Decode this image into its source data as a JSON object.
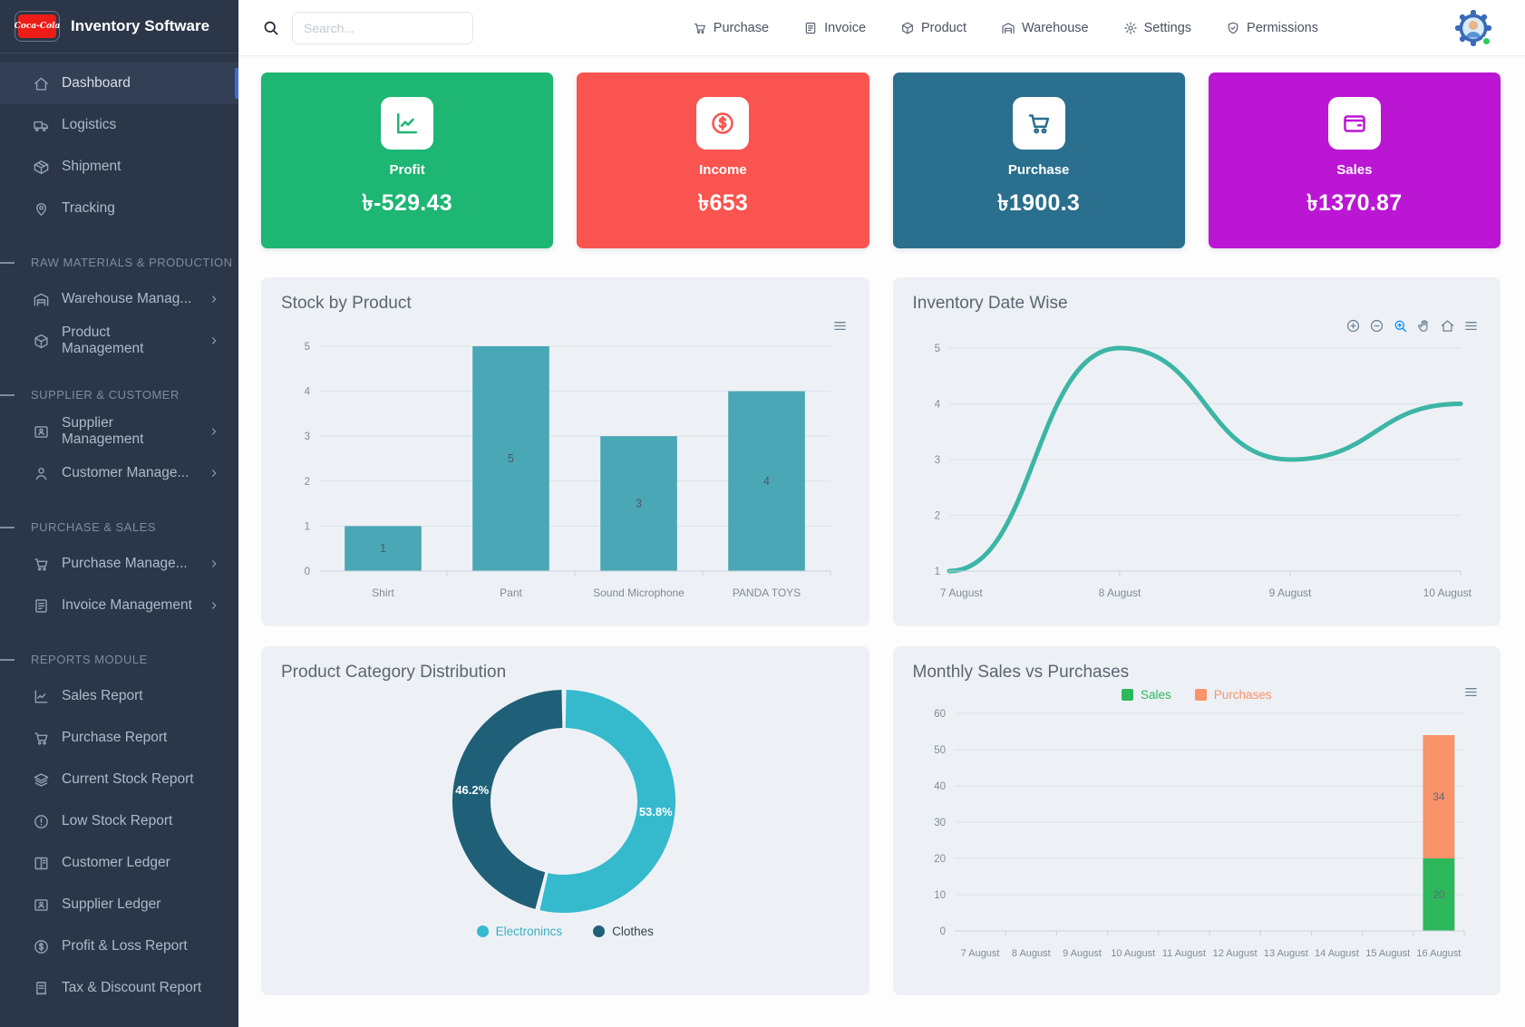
{
  "app": {
    "title": "Inventory Software",
    "logo_text": "Coca-Cola"
  },
  "topbar": {
    "search_placeholder": "Search...",
    "nav": [
      {
        "label": "Purchase",
        "icon": "cart"
      },
      {
        "label": "Invoice",
        "icon": "invoice"
      },
      {
        "label": "Product",
        "icon": "box"
      },
      {
        "label": "Warehouse",
        "icon": "warehouse"
      },
      {
        "label": "Settings",
        "icon": "gear"
      },
      {
        "label": "Permissions",
        "icon": "shield"
      }
    ],
    "avatar_status": "online"
  },
  "sidebar": {
    "sections": [
      {
        "header": null,
        "items": [
          {
            "label": "Dashboard",
            "icon": "home",
            "active": true
          },
          {
            "label": "Logistics",
            "icon": "truck"
          },
          {
            "label": "Shipment",
            "icon": "package"
          },
          {
            "label": "Tracking",
            "icon": "pin"
          }
        ]
      },
      {
        "header": "RAW MATERIALS & PRODUCTION",
        "items": [
          {
            "label": "Warehouse Manag...",
            "icon": "warehouse",
            "arrow": true
          },
          {
            "label": "Product Management",
            "icon": "box",
            "arrow": true
          }
        ]
      },
      {
        "header": "SUPPLIER & CUSTOMER",
        "items": [
          {
            "label": "Supplier Management",
            "icon": "idcard",
            "arrow": true
          },
          {
            "label": "Customer Manage...",
            "icon": "user",
            "arrow": true
          }
        ]
      },
      {
        "header": "PURCHASE & SALES",
        "items": [
          {
            "label": "Purchase Manage...",
            "icon": "cart",
            "arrow": true
          },
          {
            "label": "Invoice Management",
            "icon": "invoice",
            "arrow": true
          }
        ]
      },
      {
        "header": "REPORTS MODULE",
        "items": [
          {
            "label": "Sales Report",
            "icon": "chart"
          },
          {
            "label": "Purchase Report",
            "icon": "cart"
          },
          {
            "label": "Current Stock Report",
            "icon": "layers"
          },
          {
            "label": "Low Stock Report",
            "icon": "alert"
          },
          {
            "label": "Customer Ledger",
            "icon": "book"
          },
          {
            "label": "Supplier Ledger",
            "icon": "idcard"
          },
          {
            "label": "Profit & Loss Report",
            "icon": "dollar"
          },
          {
            "label": "Tax & Discount Report",
            "icon": "receipt"
          }
        ]
      }
    ]
  },
  "stats": [
    {
      "label": "Profit",
      "value": "৳-529.43",
      "color": "#1db672",
      "icon": "chart"
    },
    {
      "label": "Income",
      "value": "৳653",
      "color": "#f9544f",
      "icon": "dollar"
    },
    {
      "label": "Purchase",
      "value": "৳1900.3",
      "color": "#2a6f8d",
      "icon": "cart"
    },
    {
      "label": "Sales",
      "value": "৳1370.87",
      "color": "#bb16d4",
      "icon": "wallet"
    }
  ],
  "chart_data": [
    {
      "panel": "Stock by Product",
      "type": "bar",
      "categories": [
        "Shirt",
        "Pant",
        "Sound Microphone",
        "PANDA TOYS"
      ],
      "values": [
        1,
        5,
        3,
        4
      ],
      "ylim": [
        0,
        5
      ],
      "ytick_step": 1,
      "bar_color": "#4aa7b5",
      "grid": true,
      "toolbar": [
        "menu"
      ]
    },
    {
      "panel": "Inventory Date Wise",
      "type": "line",
      "x": [
        "7 August",
        "8 August",
        "9 August",
        "10 August"
      ],
      "values": [
        1,
        5,
        3,
        4
      ],
      "ylim": [
        1,
        5
      ],
      "ytick_step": 1,
      "line_color": "#3cb5a6",
      "smooth": true,
      "grid": true,
      "toolbar": [
        "zoom-in",
        "zoom-out",
        "selection-zoom",
        "pan",
        "home",
        "menu"
      ]
    },
    {
      "panel": "Product Category Distribution",
      "type": "donut",
      "labels": [
        "Electronincs",
        "Clothes"
      ],
      "values_pct": [
        53.8,
        46.2
      ],
      "value_labels": [
        "53.8%",
        "46.2%"
      ],
      "colors": [
        "#35b9cd",
        "#1f5f78"
      ],
      "legend_position": "bottom"
    },
    {
      "panel": "Monthly Sales vs Purchases",
      "type": "stacked-bar",
      "categories": [
        "7 August",
        "8 August",
        "9 August",
        "10 August",
        "11 August",
        "12 August",
        "13 August",
        "14 August",
        "15 August",
        "16 August"
      ],
      "series": [
        {
          "name": "Sales",
          "color": "#2eb85c",
          "values": [
            0,
            0,
            0,
            0,
            0,
            0,
            0,
            0,
            0,
            20
          ]
        },
        {
          "name": "Purchases",
          "color": "#f8936a",
          "values": [
            0,
            0,
            0,
            0,
            0,
            0,
            0,
            0,
            0,
            34
          ]
        }
      ],
      "ylim": [
        0,
        60
      ],
      "ytick_step": 10,
      "legend_position": "top",
      "toolbar": [
        "menu"
      ]
    }
  ]
}
